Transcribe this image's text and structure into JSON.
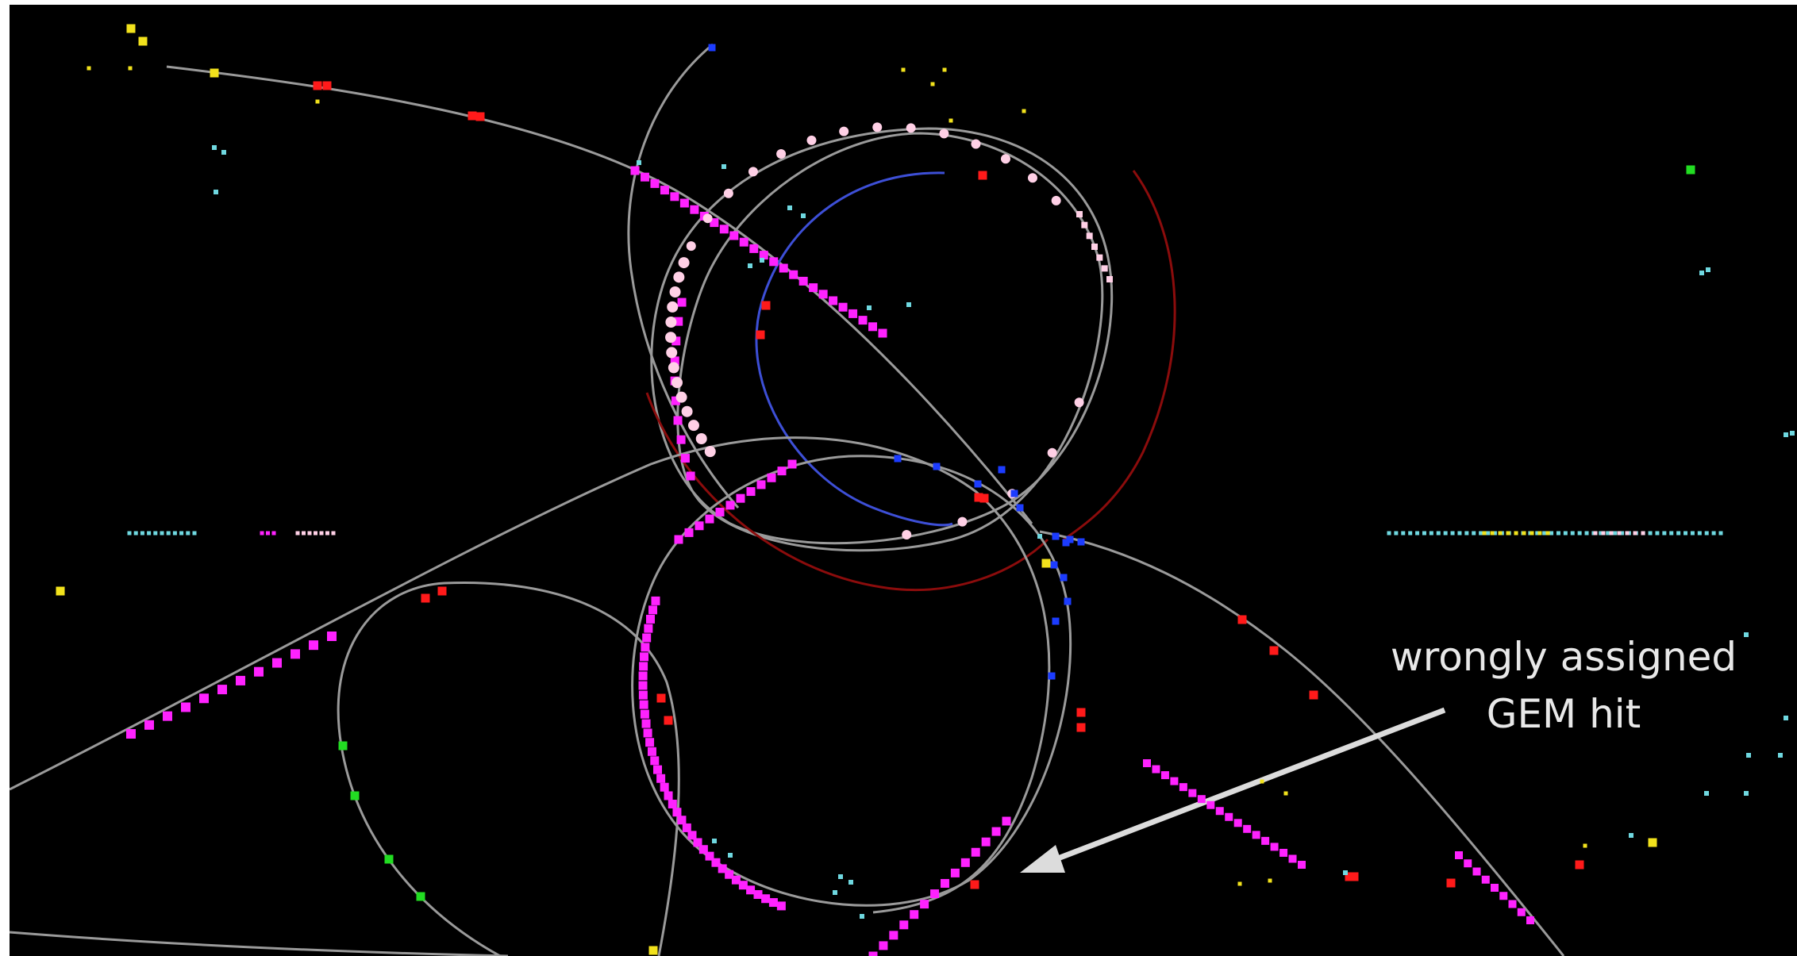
{
  "annotation": {
    "line1": "wrongly assigned",
    "line2": "GEM hit"
  },
  "colors": {
    "background": "#000000",
    "track": "#9a9a9a",
    "track_blue": "#3d4fd6",
    "track_red": "#8b0c0c",
    "hit_magenta": "#ff22ff",
    "hit_pink": "#ffd0e6",
    "hit_red": "#ff1a1a",
    "hit_blue": "#1c3cff",
    "hit_green": "#22dd22",
    "hit_yellow": "#f2e21c",
    "hit_cyan": "#6fd8e0",
    "arrow": "#dcdcdc",
    "label": "#e8e8e8"
  }
}
